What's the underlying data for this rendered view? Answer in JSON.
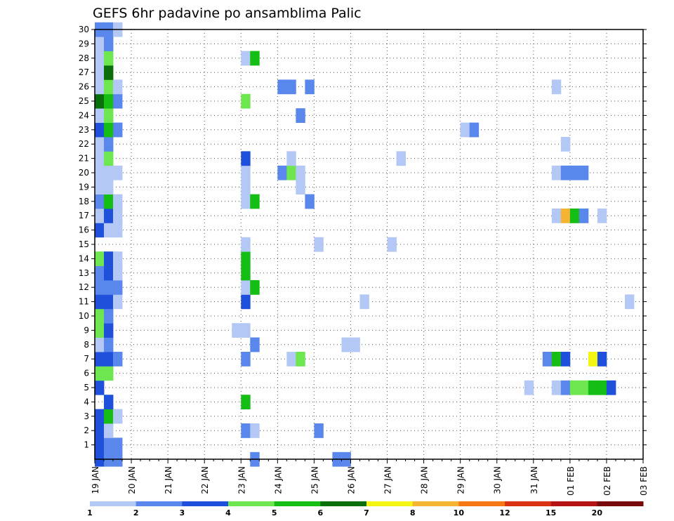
{
  "chart_data": {
    "type": "heatmap",
    "title": "GEFS 6hr padavine po ansamblima Palic",
    "xlabel": "",
    "ylabel": "",
    "x_ticks": [
      "19 JAN",
      "20 JAN",
      "21 JAN",
      "22 JAN",
      "23 JAN",
      "24 JAN",
      "25 JAN",
      "26 JAN",
      "27 JAN",
      "28 JAN",
      "29 JAN",
      "30 JAN",
      "31 JAN",
      "01 FEB",
      "02 FEB",
      "03 FEB"
    ],
    "y_ticks": [
      "1",
      "2",
      "3",
      "4",
      "5",
      "6",
      "7",
      "8",
      "9",
      "10",
      "11",
      "12",
      "13",
      "14",
      "15",
      "16",
      "17",
      "18",
      "19",
      "20",
      "21",
      "22",
      "23",
      "24",
      "25",
      "26",
      "27",
      "28",
      "29",
      "30"
    ],
    "xlim": [
      0,
      60
    ],
    "ylim": [
      0,
      30
    ],
    "grid": true,
    "colorbar": {
      "placement": "bottom",
      "boundaries": [
        "1",
        "2",
        "3",
        "4",
        "5",
        "6",
        "7",
        "8",
        "10",
        "12",
        "15",
        "20"
      ],
      "colors": [
        "#b4c8f5",
        "#5a87eb",
        "#1e50dc",
        "#6ee650",
        "#14be14",
        "#0a6e0a",
        "#f5f514",
        "#f5b432",
        "#f57814",
        "#dc3214",
        "#b41414",
        "#780a0a"
      ]
    },
    "cells": [
      [
        0,
        0,
        2
      ],
      [
        1,
        0,
        1
      ],
      [
        2,
        0,
        1
      ],
      [
        17,
        0,
        1
      ],
      [
        26,
        0,
        1
      ],
      [
        27,
        0,
        1
      ],
      [
        0,
        1,
        2
      ],
      [
        1,
        1,
        1
      ],
      [
        2,
        1,
        1
      ],
      [
        0,
        2,
        2
      ],
      [
        1,
        2,
        0
      ],
      [
        16,
        2,
        1
      ],
      [
        17,
        2,
        0
      ],
      [
        24,
        2,
        1
      ],
      [
        0,
        3,
        2
      ],
      [
        1,
        3,
        4
      ],
      [
        2,
        3,
        0
      ],
      [
        1,
        4,
        2
      ],
      [
        16,
        4,
        4
      ],
      [
        0,
        5,
        2
      ],
      [
        47,
        5,
        0
      ],
      [
        50,
        5,
        0
      ],
      [
        51,
        5,
        1
      ],
      [
        52,
        5,
        3
      ],
      [
        53,
        5,
        3
      ],
      [
        54,
        5,
        4
      ],
      [
        55,
        5,
        4
      ],
      [
        56,
        5,
        2
      ],
      [
        0,
        6,
        3
      ],
      [
        1,
        6,
        3
      ],
      [
        0,
        7,
        2
      ],
      [
        1,
        7,
        2
      ],
      [
        2,
        7,
        1
      ],
      [
        16,
        7,
        1
      ],
      [
        21,
        7,
        0
      ],
      [
        22,
        7,
        3
      ],
      [
        49,
        7,
        1
      ],
      [
        50,
        7,
        4
      ],
      [
        51,
        7,
        2
      ],
      [
        54,
        7,
        6
      ],
      [
        55,
        7,
        2
      ],
      [
        0,
        8,
        0
      ],
      [
        1,
        8,
        1
      ],
      [
        17,
        8,
        1
      ],
      [
        27,
        8,
        0
      ],
      [
        28,
        8,
        0
      ],
      [
        0,
        9,
        3
      ],
      [
        1,
        9,
        2
      ],
      [
        15,
        9,
        0
      ],
      [
        16,
        9,
        0
      ],
      [
        0,
        10,
        3
      ],
      [
        1,
        10,
        1
      ],
      [
        0,
        11,
        2
      ],
      [
        1,
        11,
        2
      ],
      [
        2,
        11,
        0
      ],
      [
        16,
        11,
        2
      ],
      [
        29,
        11,
        0
      ],
      [
        58,
        11,
        0
      ],
      [
        0,
        12,
        1
      ],
      [
        1,
        12,
        1
      ],
      [
        2,
        12,
        1
      ],
      [
        16,
        12,
        0
      ],
      [
        17,
        12,
        4
      ],
      [
        0,
        13,
        1
      ],
      [
        1,
        13,
        2
      ],
      [
        2,
        13,
        0
      ],
      [
        16,
        13,
        4
      ],
      [
        0,
        14,
        3
      ],
      [
        1,
        14,
        2
      ],
      [
        2,
        14,
        0
      ],
      [
        16,
        14,
        4
      ],
      [
        16,
        15,
        0
      ],
      [
        24,
        15,
        0
      ],
      [
        32,
        15,
        0
      ],
      [
        0,
        16,
        2
      ],
      [
        1,
        16,
        0
      ],
      [
        2,
        16,
        0
      ],
      [
        0,
        17,
        0
      ],
      [
        1,
        17,
        2
      ],
      [
        2,
        17,
        0
      ],
      [
        50,
        17,
        0
      ],
      [
        51,
        17,
        7
      ],
      [
        52,
        17,
        4
      ],
      [
        53,
        17,
        1
      ],
      [
        55,
        17,
        0
      ],
      [
        0,
        18,
        1
      ],
      [
        1,
        18,
        4
      ],
      [
        2,
        18,
        0
      ],
      [
        16,
        18,
        0
      ],
      [
        17,
        18,
        4
      ],
      [
        23,
        18,
        1
      ],
      [
        0,
        19,
        0
      ],
      [
        1,
        19,
        0
      ],
      [
        16,
        19,
        0
      ],
      [
        22,
        19,
        0
      ],
      [
        0,
        20,
        0
      ],
      [
        1,
        20,
        0
      ],
      [
        2,
        20,
        0
      ],
      [
        16,
        20,
        0
      ],
      [
        20,
        20,
        1
      ],
      [
        21,
        20,
        3
      ],
      [
        22,
        20,
        0
      ],
      [
        50,
        20,
        0
      ],
      [
        51,
        20,
        1
      ],
      [
        52,
        20,
        1
      ],
      [
        53,
        20,
        1
      ],
      [
        0,
        21,
        0
      ],
      [
        1,
        21,
        3
      ],
      [
        16,
        21,
        2
      ],
      [
        21,
        21,
        0
      ],
      [
        33,
        21,
        0
      ],
      [
        0,
        22,
        0
      ],
      [
        1,
        22,
        1
      ],
      [
        51,
        22,
        0
      ],
      [
        0,
        23,
        2
      ],
      [
        1,
        23,
        4
      ],
      [
        2,
        23,
        1
      ],
      [
        40,
        23,
        0
      ],
      [
        41,
        23,
        1
      ],
      [
        0,
        24,
        0
      ],
      [
        1,
        24,
        3
      ],
      [
        22,
        24,
        1
      ],
      [
        0,
        25,
        5
      ],
      [
        1,
        25,
        4
      ],
      [
        2,
        25,
        1
      ],
      [
        16,
        25,
        3
      ],
      [
        0,
        26,
        0
      ],
      [
        1,
        26,
        3
      ],
      [
        2,
        26,
        0
      ],
      [
        20,
        26,
        1
      ],
      [
        21,
        26,
        1
      ],
      [
        23,
        26,
        1
      ],
      [
        50,
        26,
        0
      ],
      [
        0,
        27,
        0
      ],
      [
        1,
        27,
        5
      ],
      [
        0,
        28,
        0
      ],
      [
        1,
        28,
        3
      ],
      [
        16,
        28,
        0
      ],
      [
        17,
        28,
        4
      ],
      [
        0,
        29,
        0
      ],
      [
        1,
        29,
        1
      ],
      [
        0,
        30,
        1
      ],
      [
        1,
        30,
        1
      ],
      [
        2,
        30,
        0
      ]
    ]
  }
}
